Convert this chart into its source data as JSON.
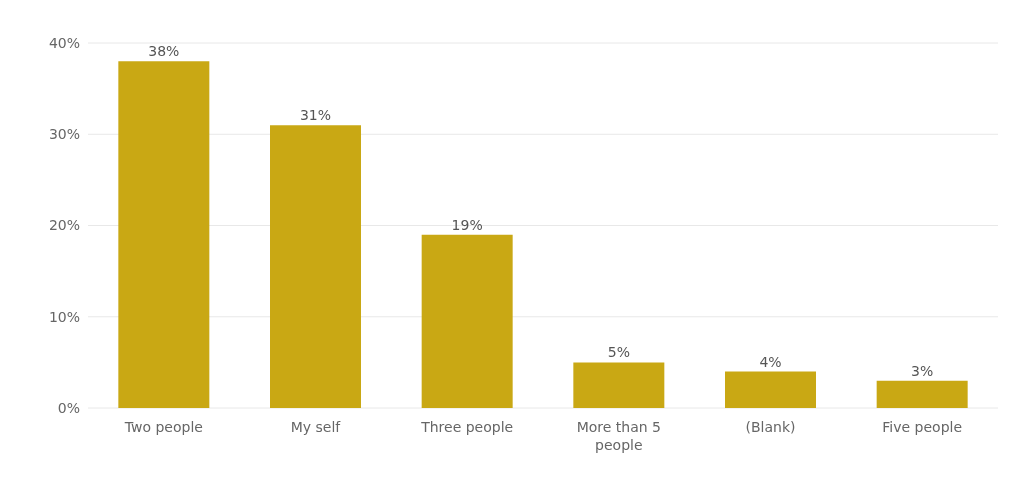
{
  "chart_data": {
    "type": "bar",
    "categories": [
      "Two people",
      "My self",
      "Three people",
      "More than 5 people",
      "(Blank)",
      "Five people"
    ],
    "values": [
      38,
      31,
      19,
      5,
      4,
      3
    ],
    "value_labels": [
      "38%",
      "31%",
      "19%",
      "5%",
      "4%",
      "3%"
    ],
    "color": "#c9a814",
    "ylim": [
      0,
      40
    ],
    "yticks": [
      {
        "value": 0,
        "label": "0%"
      },
      {
        "value": 10,
        "label": "10%"
      },
      {
        "value": 20,
        "label": "20%"
      },
      {
        "value": 30,
        "label": "30%"
      },
      {
        "value": 40,
        "label": "40%"
      }
    ],
    "grid": "y"
  }
}
